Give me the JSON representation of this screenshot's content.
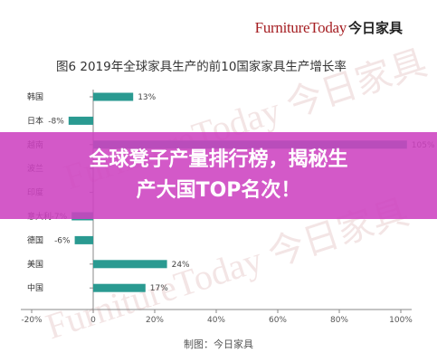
{
  "header": {
    "logo_en": "FurnitureToday",
    "logo_cn": "今日家具"
  },
  "figure": {
    "source": "制图：今日家具"
  },
  "banner": {
    "line1": "全球凳子产量排行榜，揭秘生",
    "line2": "产大国TOP名次！"
  },
  "watermark": {
    "text": "FurnitureToday 今日家具"
  },
  "colors": {
    "bar": "#2a9a91",
    "axis": "#888888",
    "grid": "#cccccc",
    "banner": "#cd42c0"
  },
  "chart_data": {
    "type": "bar",
    "orientation": "horizontal",
    "title": "图6  2019年全球家具生产的前10国家家具生产增长率",
    "categories": [
      "韩国",
      "日本",
      "越南",
      "波兰",
      "印度",
      "意大利",
      "德国",
      "美国",
      "中国"
    ],
    "values": [
      13,
      -8,
      105,
      null,
      null,
      -7,
      -6,
      24,
      17
    ],
    "value_labels": [
      "13%",
      "-8%",
      "105%",
      "",
      "",
      "-7%",
      "-6%",
      "24%",
      "17%"
    ],
    "xlim": [
      -20,
      100
    ],
    "xticks": [
      -20,
      0,
      20,
      40,
      60,
      80,
      100
    ],
    "xtick_labels": [
      "-20%",
      "0",
      "20%",
      "40%",
      "60%",
      "80%",
      "100%"
    ],
    "grid": false,
    "legend": "none"
  }
}
